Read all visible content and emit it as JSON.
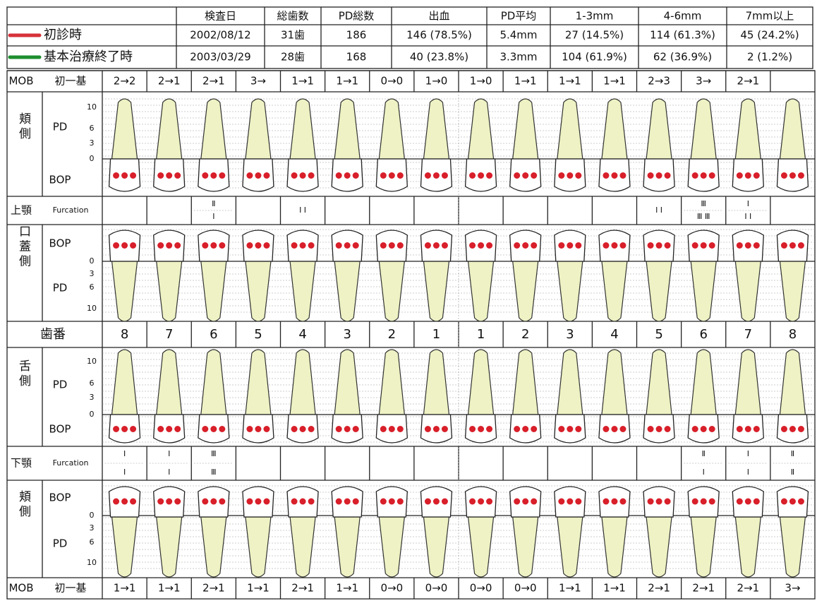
{
  "summary": {
    "headers": [
      "検査日",
      "総歯数",
      "PD総数",
      "出血",
      "PD平均",
      "1-3mm",
      "4-6mm",
      "7mm以上"
    ],
    "rows": [
      {
        "label": "初診時",
        "cells": [
          "2002/08/12",
          "31歯",
          "186",
          "146 (78.5%)",
          "5.4mm",
          "27 (14.5%)",
          "114 (61.3%)",
          "45 (24.2%)"
        ]
      },
      {
        "label": "基本治療終了時",
        "cells": [
          "2003/03/29",
          "28歯",
          "168",
          "40 (23.8%)",
          "3.3mm",
          "104 (61.9%)",
          "62 (36.9%)",
          "2 (1.2%)"
        ]
      }
    ]
  },
  "upper": {
    "mob_label": "MOB",
    "mob_sub": "初一基",
    "mob": [
      "2→2",
      "2→1",
      "2→1",
      "3→",
      "1→1",
      "1→1",
      "0→0",
      "1→0",
      "1→0",
      "1→1",
      "1→1",
      "1→1",
      "2→3",
      "3→",
      "2→1"
    ],
    "buccal_label": "頬側",
    "pd_label": "PD",
    "bop_label": "BOP",
    "scale": [
      10,
      6,
      3,
      0
    ],
    "jaw_label": "上顎",
    "furcation_label": "Furcation",
    "furcation": [
      null,
      null,
      [
        "Ⅱ",
        "Ⅰ"
      ],
      null,
      [
        "Ⅰ Ⅰ"
      ],
      null,
      null,
      null,
      null,
      null,
      null,
      null,
      [
        "Ⅰ Ⅰ"
      ],
      [
        "Ⅲ",
        "Ⅲ Ⅲ"
      ],
      [
        "Ⅰ",
        "Ⅰ Ⅰ"
      ],
      null
    ],
    "palatal_label": "口蓋側",
    "palatal_bop_label": "BOP",
    "palatal_pd_label": "PD",
    "palatal_scale": [
      0,
      3,
      6,
      10
    ]
  },
  "middle": {
    "tooth_no_label": "歯番",
    "numbers": [
      8,
      7,
      6,
      5,
      4,
      3,
      2,
      1,
      1,
      2,
      3,
      4,
      5,
      6,
      7,
      8
    ]
  },
  "lower": {
    "lingual_label": "舌側",
    "pd_label": "PD",
    "bop_label": "BOP",
    "scale": [
      10,
      6,
      3,
      0
    ],
    "jaw_label": "下顎",
    "furcation_label": "Furcation",
    "furcation": [
      [
        "Ⅰ",
        "Ⅰ"
      ],
      [
        "Ⅰ",
        "Ⅰ"
      ],
      [
        "Ⅲ",
        "Ⅲ"
      ],
      null,
      null,
      null,
      null,
      null,
      null,
      null,
      null,
      null,
      null,
      [
        "Ⅱ",
        "Ⅰ"
      ],
      [
        "Ⅰ",
        "Ⅰ"
      ],
      [
        "Ⅱ",
        "Ⅱ"
      ]
    ],
    "buccal_label": "頬側",
    "buccal_bop_label": "BOP",
    "buccal_pd_label": "PD",
    "buccal_scale": [
      0,
      3,
      6,
      10
    ],
    "mob_label": "MOB",
    "mob_sub": "初一基",
    "mob": [
      "1→1",
      "1→1",
      "2→1",
      "1→1",
      "2→1",
      "1→1",
      "0→0",
      "0→0",
      "0→0",
      "0→0",
      "1→1",
      "1→1",
      "2→1",
      "2→1",
      "2→1",
      "3→"
    ]
  }
}
